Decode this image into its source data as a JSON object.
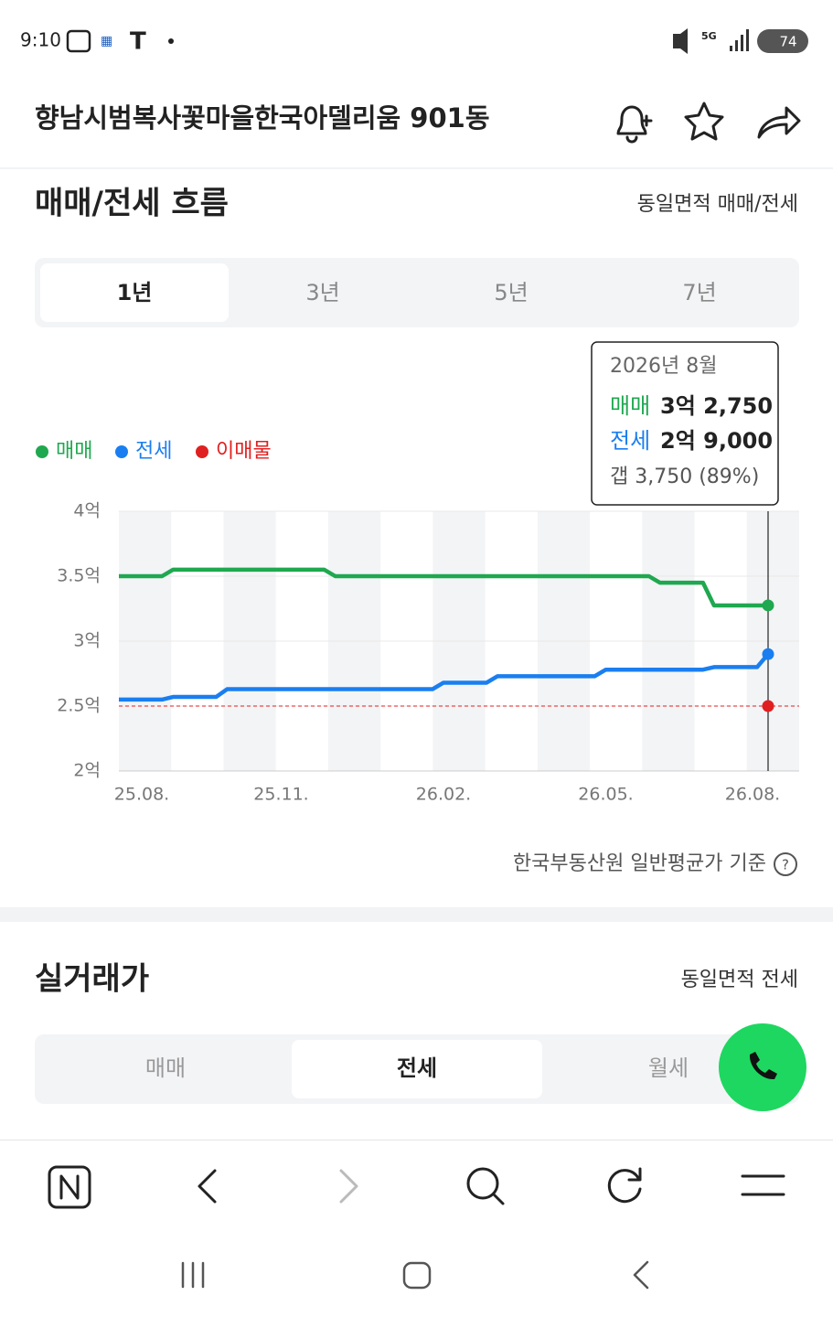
{
  "status_bar": {
    "time": "9:10",
    "battery": "74"
  },
  "header": {
    "title": "향남시범복사꽃마을한국아델리움 901동"
  },
  "flow_section": {
    "title": "매매/전세 흐름",
    "link": "동일면적 매매/전세",
    "tabs": [
      "1년",
      "3년",
      "5년",
      "7년"
    ],
    "tooltip": {
      "date": "2026년 8월",
      "sale_label": "매매",
      "sale_value": "3억 2,750",
      "lease_label": "전세",
      "lease_value": "2억 9,000",
      "gap": "갭 3,750 (89%)"
    },
    "footnote": "한국부동산원 일반평균가 기준"
  },
  "chart_data": {
    "type": "line",
    "categories": [
      "25.08.",
      null,
      null,
      "25.11.",
      null,
      null,
      "26.02.",
      null,
      null,
      "26.05.",
      null,
      null,
      "26.08."
    ],
    "series": [
      {
        "name": "매매",
        "color": "#1fa84f",
        "values": [
          3.5,
          3.55,
          3.55,
          3.55,
          3.5,
          3.5,
          3.5,
          3.5,
          3.5,
          3.5,
          3.45,
          3.275,
          3.275
        ]
      },
      {
        "name": "전세",
        "color": "#1a7ef0",
        "values": [
          2.55,
          2.57,
          2.63,
          2.63,
          2.63,
          2.63,
          2.68,
          2.73,
          2.73,
          2.78,
          2.78,
          2.8,
          2.9
        ]
      },
      {
        "name": "이매물",
        "color": "#e02020",
        "values": [
          null,
          null,
          null,
          null,
          null,
          null,
          null,
          null,
          null,
          null,
          null,
          null,
          2.5
        ]
      }
    ],
    "ylim": [
      2,
      4
    ],
    "yticks": [
      {
        "value": 2,
        "label": "2억"
      },
      {
        "value": 2.5,
        "label": "2.5억"
      },
      {
        "value": 3,
        "label": "3억"
      },
      {
        "value": 3.5,
        "label": "3.5억"
      },
      {
        "value": 4,
        "label": "4억"
      }
    ],
    "grid": true
  },
  "trade_section": {
    "title": "실거래가",
    "link": "동일면적 전세",
    "tabs": [
      "매매",
      "전세",
      "월세"
    ]
  }
}
